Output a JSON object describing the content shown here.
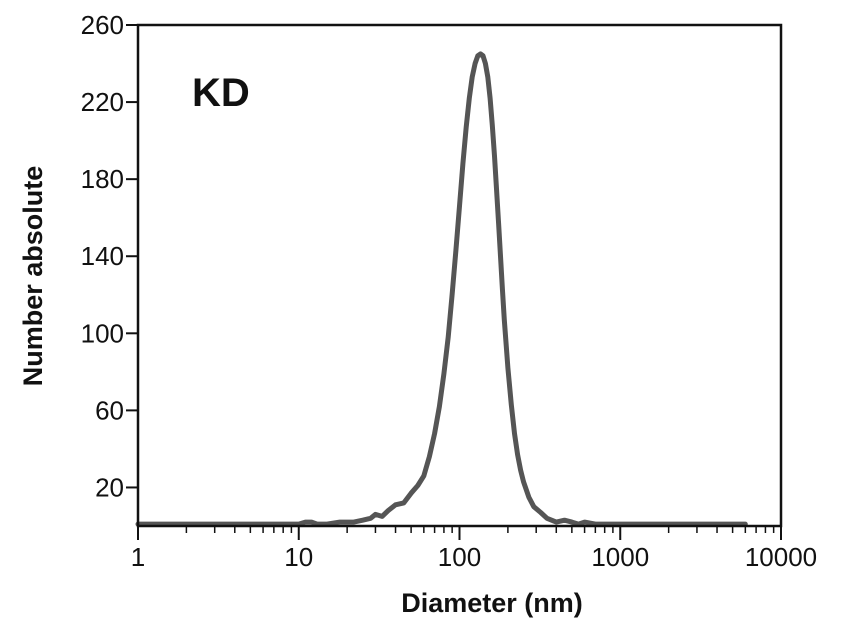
{
  "chart_data": {
    "type": "line",
    "title": "",
    "panel_label": "KD",
    "xlabel": "Diameter (nm)",
    "ylabel": "Number absolute",
    "x_scale": "log",
    "xlim": [
      1,
      10000
    ],
    "ylim": [
      0,
      260
    ],
    "x_ticks": [
      1,
      10,
      100,
      1000,
      10000
    ],
    "x_tick_labels": [
      "1",
      "10",
      "100",
      "1000",
      "10000"
    ],
    "y_ticks": [
      20,
      60,
      100,
      140,
      180,
      220,
      260
    ],
    "y_tick_labels": [
      "20",
      "60",
      "100",
      "140",
      "180",
      "220",
      "260"
    ],
    "grid": false,
    "legend": "none",
    "line_color": "#555555",
    "series": [
      {
        "x": [
          1,
          5,
          10,
          11,
          12,
          13,
          15,
          18,
          22,
          25,
          28,
          30,
          33,
          36,
          40,
          45,
          50,
          55,
          60,
          65,
          70,
          75,
          80,
          85,
          90,
          95,
          100,
          105,
          110,
          115,
          120,
          125,
          130,
          135,
          140,
          145,
          150,
          155,
          160,
          165,
          170,
          175,
          180,
          185,
          190,
          200,
          210,
          220,
          230,
          240,
          250,
          270,
          290,
          320,
          350,
          400,
          450,
          500,
          550,
          600,
          700,
          1000,
          2000,
          5000,
          6000
        ],
        "y": [
          1,
          1,
          1,
          2,
          2,
          1,
          1,
          2,
          2,
          3,
          4,
          6,
          5,
          8,
          11,
          12,
          17,
          21,
          26,
          36,
          48,
          62,
          79,
          98,
          120,
          143,
          166,
          188,
          207,
          222,
          233,
          240,
          244,
          245,
          244,
          240,
          233,
          222,
          208,
          192,
          175,
          157,
          140,
          123,
          107,
          82,
          63,
          48,
          37,
          29,
          23,
          15,
          10,
          7,
          4,
          2,
          3,
          2,
          1,
          2,
          1,
          1,
          1,
          1,
          1
        ]
      }
    ]
  }
}
